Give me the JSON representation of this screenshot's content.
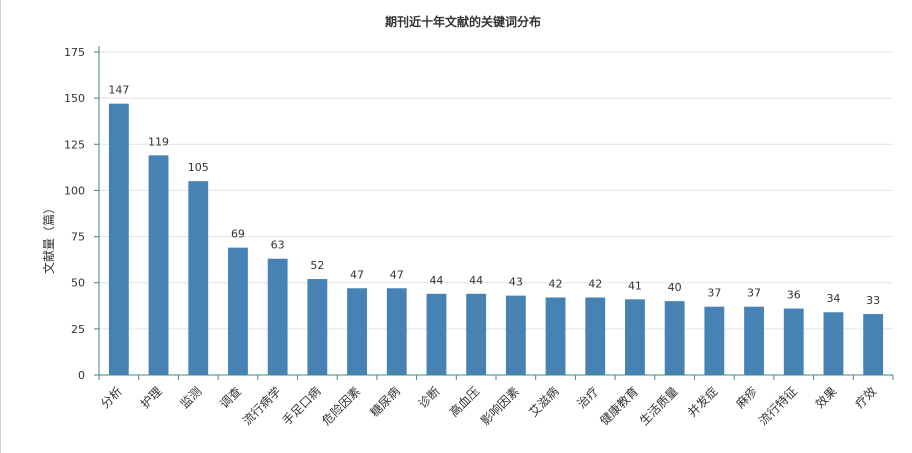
{
  "chart_data": {
    "type": "bar",
    "title": "期刊近十年文献的关键词分布",
    "xlabel": "",
    "ylabel": "文献量（篇）",
    "ylim": [
      0,
      175
    ],
    "yticks": [
      0,
      25,
      50,
      75,
      100,
      125,
      150,
      175
    ],
    "grid": true,
    "legend": "none",
    "bar_color": "#4682b4",
    "categories": [
      "分析",
      "护理",
      "监测",
      "调查",
      "流行病学",
      "手足口病",
      "危险因素",
      "糖尿病",
      "诊断",
      "高血压",
      "影响因素",
      "艾滋病",
      "治疗",
      "健康教育",
      "生活质量",
      "并发症",
      "麻疹",
      "流行特征",
      "效果",
      "疗效"
    ],
    "series": [
      {
        "values": [
          147,
          119,
          105,
          69,
          63,
          52,
          47,
          47,
          44,
          44,
          43,
          42,
          42,
          41,
          40,
          37,
          37,
          36,
          34,
          33
        ]
      }
    ]
  }
}
